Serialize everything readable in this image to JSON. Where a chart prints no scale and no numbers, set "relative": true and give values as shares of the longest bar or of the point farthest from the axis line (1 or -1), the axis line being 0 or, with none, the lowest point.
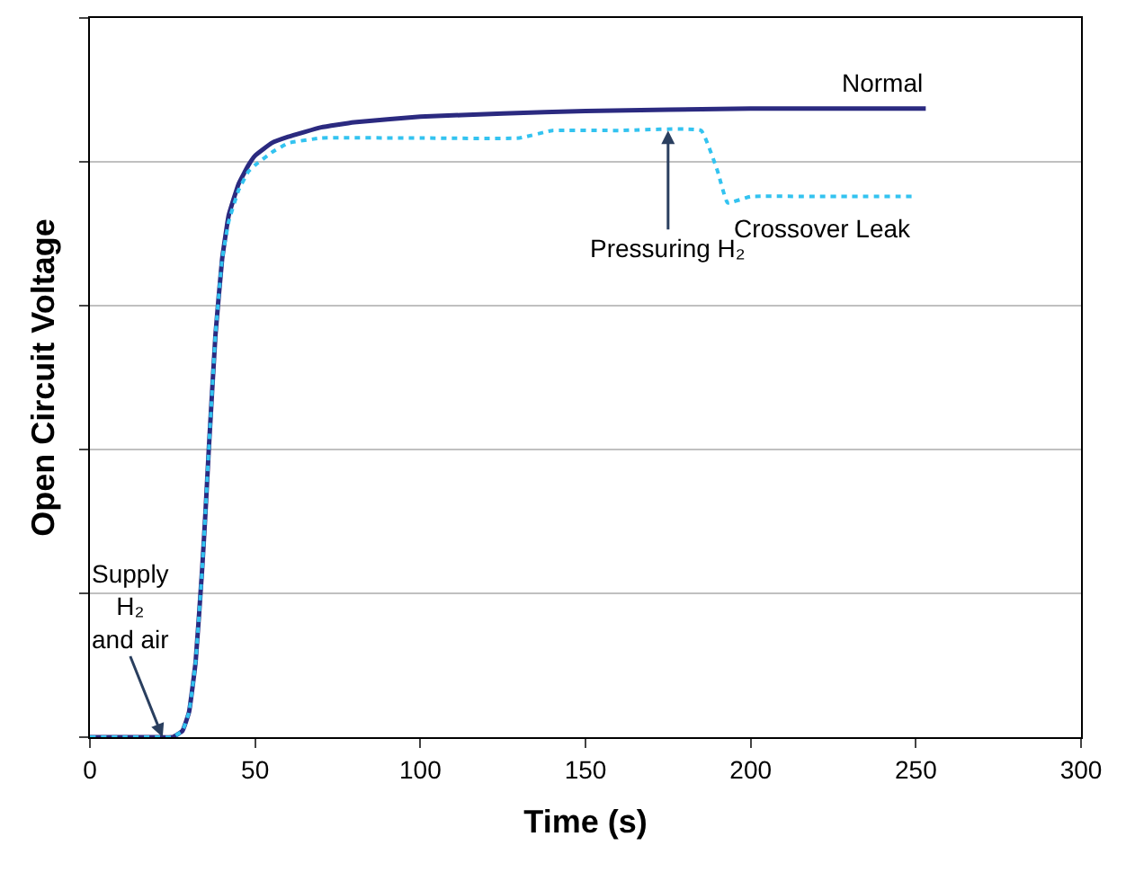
{
  "chart_data": {
    "type": "line",
    "relative": true,
    "xlabel": "Time (s)",
    "ylabel": "Open Circuit Voltage",
    "xlim": [
      0,
      300
    ],
    "xticks": [
      0,
      50,
      100,
      150,
      200,
      250,
      300
    ],
    "grid": "y",
    "legend": false,
    "marker": "none",
    "series": [
      {
        "name": "Normal",
        "color": "#2b2a80",
        "line_style": "solid",
        "x": [
          0,
          10,
          20,
          25,
          28,
          30,
          32,
          34,
          35,
          36,
          38,
          40,
          42,
          45,
          48,
          50,
          55,
          60,
          70,
          80,
          100,
          125,
          150,
          200,
          253
        ],
        "values": [
          0,
          0,
          0,
          0,
          0.01,
          0.04,
          0.12,
          0.27,
          0.36,
          0.46,
          0.64,
          0.76,
          0.83,
          0.88,
          0.91,
          0.925,
          0.945,
          0.955,
          0.97,
          0.978,
          0.987,
          0.992,
          0.996,
          1.0,
          1.0
        ]
      },
      {
        "name": "Crossover Leak",
        "color": "#33c3f0",
        "line_style": "dotted",
        "x": [
          0,
          10,
          20,
          25,
          28,
          30,
          32,
          34,
          35,
          36,
          38,
          40,
          42,
          45,
          48,
          50,
          55,
          60,
          70,
          100,
          130,
          140,
          160,
          185,
          190,
          193,
          200,
          220,
          250
        ],
        "values": [
          0,
          0,
          0,
          0,
          0.01,
          0.04,
          0.12,
          0.27,
          0.36,
          0.46,
          0.64,
          0.76,
          0.82,
          0.87,
          0.9,
          0.91,
          0.93,
          0.945,
          0.953,
          0.953,
          0.953,
          0.965,
          0.965,
          0.965,
          0.9,
          0.85,
          0.86,
          0.86,
          0.86
        ]
      }
    ],
    "annotations": [
      {
        "text": "Pressuring H₂",
        "x": 175,
        "y": 0.965
      },
      {
        "text": "Supply\nH₂\nand air",
        "x": 22,
        "y": 0
      }
    ]
  }
}
